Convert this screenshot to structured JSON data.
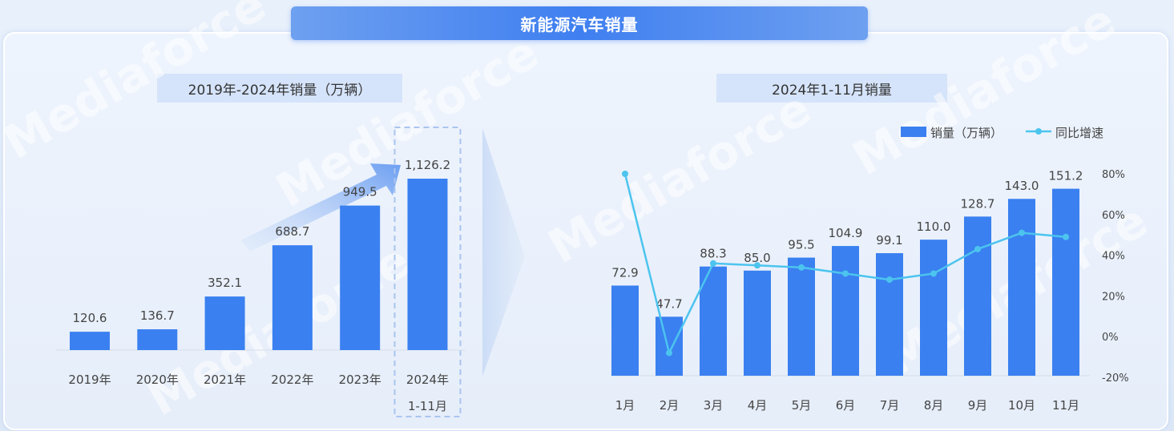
{
  "header": {
    "title": "新能源汽车销量"
  },
  "watermark": "Mediaforce",
  "colors": {
    "bar": "#3a80f0",
    "line": "#4cc4ee",
    "highlight_box": "#a9c4ef"
  },
  "chart_data": [
    {
      "type": "bar",
      "title": "2019年-2024年销量（万辆）",
      "categories": [
        "2019年",
        "2020年",
        "2021年",
        "2022年",
        "2023年",
        "2024年"
      ],
      "category_sublabels": [
        "",
        "",
        "",
        "",
        "",
        "1-11月"
      ],
      "values": [
        120.6,
        136.7,
        352.1,
        688.7,
        949.5,
        1126.2
      ],
      "value_labels": [
        "120.6",
        "136.7",
        "352.1",
        "688.7",
        "949.5",
        "1,126.2"
      ],
      "ylim": [
        0,
        1300
      ],
      "grid": false,
      "highlight_category": "2024年"
    },
    {
      "type": "bar",
      "title": "2024年1-11月销量",
      "categories": [
        "1月",
        "2月",
        "3月",
        "4月",
        "5月",
        "6月",
        "7月",
        "8月",
        "9月",
        "10月",
        "11月"
      ],
      "series": [
        {
          "name": "销量（万辆）",
          "type": "bar",
          "axis": "left",
          "values": [
            72.9,
            47.7,
            88.3,
            85.0,
            95.5,
            104.9,
            99.1,
            110.0,
            128.7,
            143.0,
            151.2
          ],
          "value_labels": [
            "72.9",
            "47.7",
            "88.3",
            "85.0",
            "95.5",
            "104.9",
            "99.1",
            "110.0",
            "128.7",
            "143.0",
            "151.2"
          ]
        },
        {
          "name": "同比增速",
          "type": "line",
          "axis": "right",
          "unit": "%",
          "values": [
            80,
            -8,
            36,
            35,
            34,
            31,
            28,
            31,
            43,
            51,
            49
          ]
        }
      ],
      "ylim_left": [
        0,
        160
      ],
      "ylim_right": [
        -20,
        80
      ],
      "right_ticks": [
        "80%",
        "60%",
        "40%",
        "20%",
        "0%",
        "-20%"
      ],
      "legend_position": "top-right",
      "grid": false
    }
  ]
}
